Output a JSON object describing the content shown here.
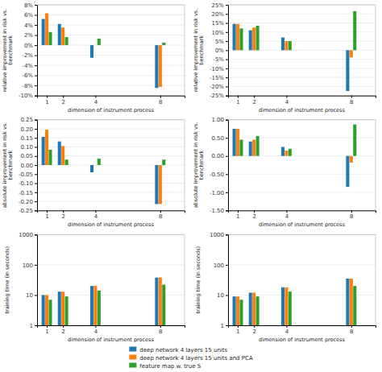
{
  "chart_data": [
    {
      "type": "bar",
      "xlabel": "dimension of instrument process",
      "ylabel": "relative improvement in risk vs.\nbenchmark",
      "x": [
        1,
        2,
        4,
        8
      ],
      "xlim": [
        0.4,
        9.5
      ],
      "xticks": [
        1,
        2,
        4,
        8
      ],
      "ylim": [
        -0.1,
        0.08
      ],
      "yticks": [
        {
          "value": -0.1,
          "label": "-10%"
        },
        {
          "value": -0.08,
          "label": "-8%"
        },
        {
          "value": -0.06,
          "label": "-6%"
        },
        {
          "value": -0.04,
          "label": "-4%"
        },
        {
          "value": -0.02,
          "label": "-2%"
        },
        {
          "value": 0.0,
          "label": "0%"
        },
        {
          "value": 0.02,
          "label": "2%"
        },
        {
          "value": 0.04,
          "label": "4%"
        },
        {
          "value": 0.06,
          "label": "6%"
        },
        {
          "value": 0.08,
          "label": "8%"
        }
      ],
      "grid": true,
      "legend": "bottom",
      "series": [
        {
          "name": "deep network 4 layers 15 units",
          "values": [
            0.052,
            0.042,
            -0.025,
            -0.085
          ]
        },
        {
          "name": "deep network 4 layers 15 units and PCA",
          "values": [
            0.063,
            0.035,
            0.0,
            -0.083
          ]
        },
        {
          "name": "feature map w. true S",
          "values": [
            0.026,
            0.016,
            0.013,
            0.005
          ]
        }
      ]
    },
    {
      "type": "bar",
      "xlabel": "dimension of instrument process",
      "ylabel": "relative improvement in risk vs.\nbenchmark",
      "x": [
        1,
        2,
        4,
        8
      ],
      "xlim": [
        0.4,
        9.5
      ],
      "xticks": [
        1,
        2,
        4,
        8
      ],
      "ylim": [
        -0.25,
        0.25
      ],
      "yticks": [
        {
          "value": -0.25,
          "label": "-25%"
        },
        {
          "value": -0.2,
          "label": "-20%"
        },
        {
          "value": -0.15,
          "label": "-15%"
        },
        {
          "value": -0.1,
          "label": "-10%"
        },
        {
          "value": -0.05,
          "label": "-5%"
        },
        {
          "value": 0.0,
          "label": "0%"
        },
        {
          "value": 0.05,
          "label": "5%"
        },
        {
          "value": 0.1,
          "label": "10%"
        },
        {
          "value": 0.15,
          "label": "15%"
        },
        {
          "value": 0.2,
          "label": "20%"
        },
        {
          "value": 0.25,
          "label": "25%"
        }
      ],
      "grid": true,
      "series": [
        {
          "values": [
            0.145,
            0.11,
            0.07,
            -0.225
          ]
        },
        {
          "values": [
            0.145,
            0.125,
            0.05,
            -0.04
          ]
        },
        {
          "values": [
            0.12,
            0.135,
            0.05,
            0.215
          ]
        }
      ]
    },
    {
      "type": "bar",
      "xlabel": "dimension of instrument process",
      "ylabel": "absolute improvement in risk vs.\nbenchmark",
      "x": [
        1,
        2,
        4,
        8
      ],
      "xlim": [
        0.4,
        9.5
      ],
      "xticks": [
        1,
        2,
        4,
        8
      ],
      "ylim": [
        -0.25,
        0.25
      ],
      "yticks": [
        {
          "value": -0.25,
          "label": "-0.25"
        },
        {
          "value": -0.2,
          "label": "-0.20"
        },
        {
          "value": -0.15,
          "label": "-0.15"
        },
        {
          "value": -0.1,
          "label": "-0.10"
        },
        {
          "value": -0.05,
          "label": "-0.05"
        },
        {
          "value": 0.0,
          "label": "0.00"
        },
        {
          "value": 0.05,
          "label": "0.05"
        },
        {
          "value": 0.1,
          "label": "0.10"
        },
        {
          "value": 0.15,
          "label": "0.15"
        },
        {
          "value": 0.2,
          "label": "0.20"
        },
        {
          "value": 0.25,
          "label": "0.25"
        }
      ],
      "grid": true,
      "series": [
        {
          "values": [
            0.155,
            0.13,
            -0.04,
            -0.215
          ]
        },
        {
          "values": [
            0.195,
            0.105,
            0.0,
            -0.215
          ]
        },
        {
          "values": [
            0.085,
            0.03,
            0.035,
            0.03
          ]
        }
      ]
    },
    {
      "type": "bar",
      "xlabel": "dimension of instrument process",
      "ylabel": "absolute improvement in risk vs.\nbenchmark",
      "x": [
        1,
        2,
        4,
        8
      ],
      "xlim": [
        0.4,
        9.5
      ],
      "xticks": [
        1,
        2,
        4,
        8
      ],
      "ylim": [
        -1.5,
        1.0
      ],
      "yticks": [
        {
          "value": -1.5,
          "label": "-1.50"
        },
        {
          "value": -1.0,
          "label": "-1.00"
        },
        {
          "value": -0.5,
          "label": "-0.50"
        },
        {
          "value": 0.0,
          "label": "0.00"
        },
        {
          "value": 0.5,
          "label": "0.50"
        },
        {
          "value": 1.0,
          "label": "1.00"
        }
      ],
      "grid": true,
      "series": [
        {
          "values": [
            0.75,
            0.4,
            0.25,
            -0.85
          ]
        },
        {
          "values": [
            0.75,
            0.45,
            0.15,
            -0.18
          ]
        },
        {
          "values": [
            0.45,
            0.55,
            0.2,
            0.87
          ]
        }
      ]
    },
    {
      "type": "bar",
      "xlabel": "dimension of instrument process",
      "ylabel": "training time (in seconds)",
      "x": [
        1,
        2,
        4,
        8
      ],
      "xlim": [
        0.4,
        9.5
      ],
      "xticks": [
        1,
        2,
        4,
        8
      ],
      "log": "y",
      "ylim": [
        1,
        1000
      ],
      "yticks": [
        1,
        10,
        100,
        1000
      ],
      "grid": true,
      "series": [
        {
          "values": [
            10,
            13,
            20,
            38
          ]
        },
        {
          "values": [
            10,
            13,
            20,
            38
          ]
        },
        {
          "values": [
            7,
            9,
            14,
            22
          ]
        }
      ]
    },
    {
      "type": "bar",
      "xlabel": "dimension of instrument process",
      "ylabel": "training time (in seconds)",
      "x": [
        1,
        2,
        4,
        8
      ],
      "xlim": [
        0.4,
        9.5
      ],
      "xticks": [
        1,
        2,
        4,
        8
      ],
      "log": "y",
      "ylim": [
        1,
        1000
      ],
      "yticks": [
        1,
        10,
        100,
        1000
      ],
      "grid": true,
      "series": [
        {
          "values": [
            9,
            12,
            18,
            35
          ]
        },
        {
          "values": [
            9,
            12,
            18,
            35
          ]
        },
        {
          "values": [
            7,
            9,
            13,
            20
          ]
        }
      ]
    }
  ]
}
